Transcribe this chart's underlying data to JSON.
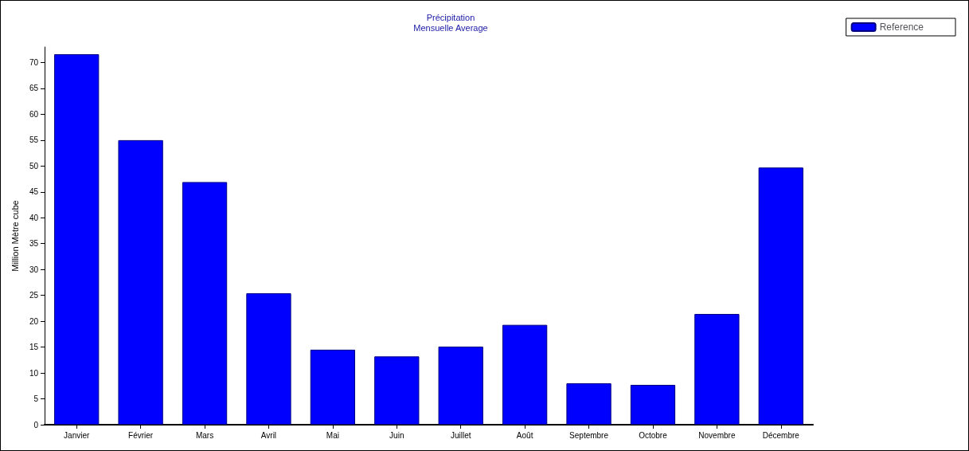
{
  "chart_data": {
    "type": "bar",
    "title": "Précipitation",
    "subtitle": "Mensuelle Average",
    "ylabel": "Million Mètre cube",
    "categories": [
      "Janvier",
      "Février",
      "Mars",
      "Avril",
      "Mai",
      "Juin",
      "Juillet",
      "Août",
      "Septembre",
      "Octobre",
      "Novembre",
      "Décembre"
    ],
    "series": [
      {
        "name": "Reference",
        "color": "#0000ff",
        "values": [
          71.6,
          55,
          46.9,
          25.4,
          14.5,
          13.2,
          15.1,
          19.3,
          8,
          7.7,
          21.4,
          49.7
        ]
      }
    ],
    "ylim": [
      0,
      73
    ],
    "yticks": [
      0,
      5,
      10,
      15,
      20,
      25,
      30,
      35,
      40,
      45,
      50,
      55,
      60,
      65,
      70
    ],
    "grid": false,
    "legend": "top right"
  }
}
